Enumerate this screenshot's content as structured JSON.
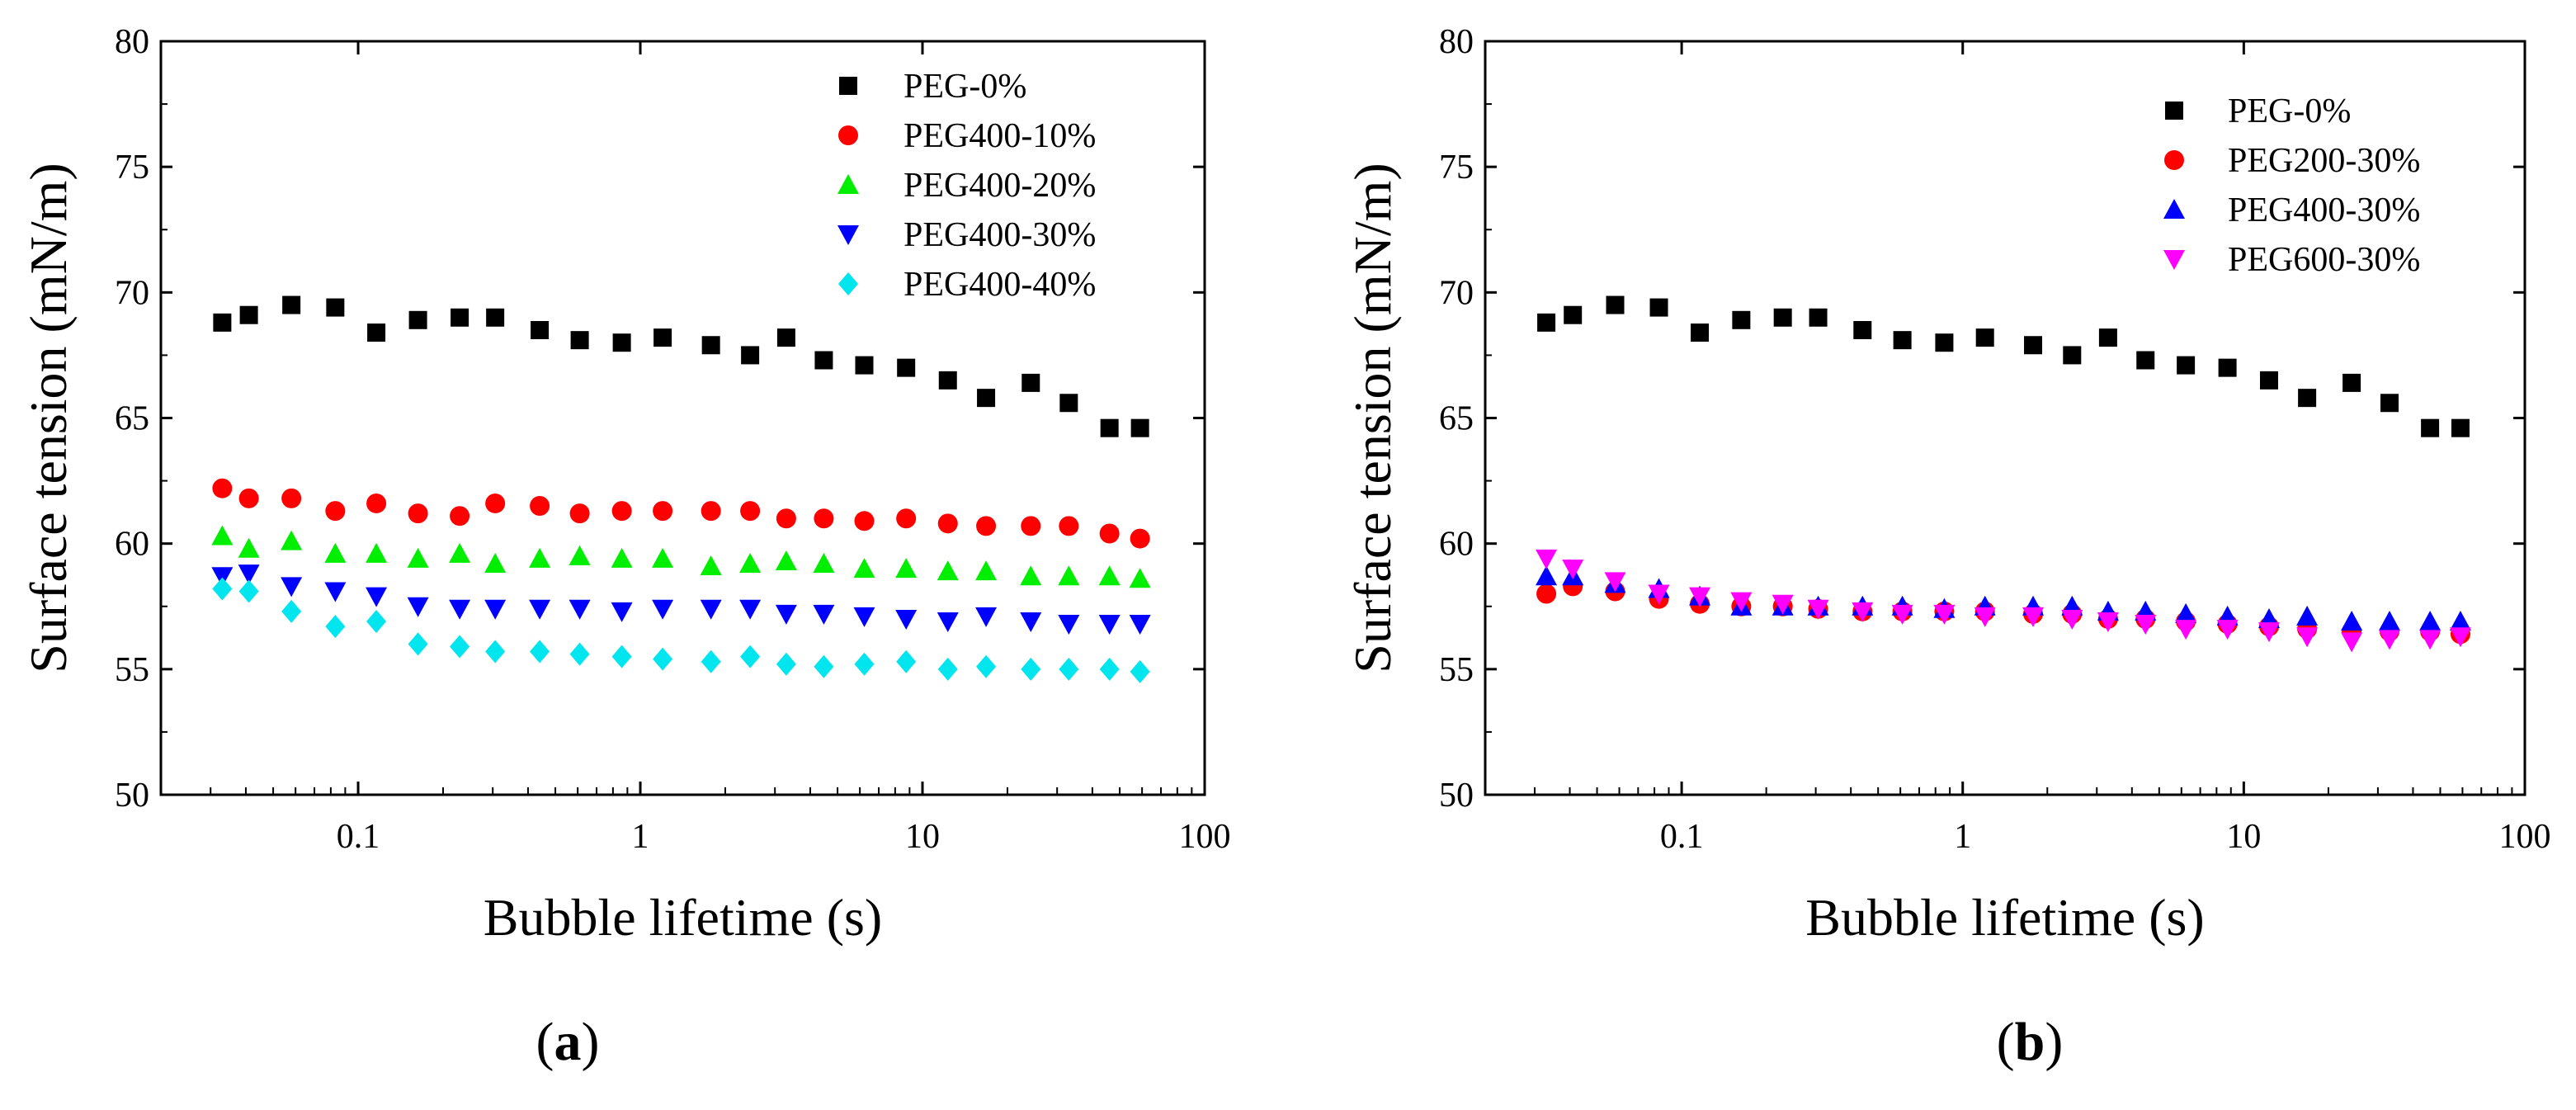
{
  "colors": {
    "PEG-0%": "#000000",
    "PEG400-10%": "#ff0000",
    "PEG400-20%": "#00ee00",
    "PEG400-30%": "#0000ff",
    "PEG400-40%": "#00e5ee",
    "PEG200-30%": "#ff0000",
    "PEG600-30%": "#ff00ff"
  },
  "panels": [
    {
      "label_open": "(",
      "label_letter": "a",
      "label_close": ")"
    },
    {
      "label_open": "(",
      "label_letter": "b",
      "label_close": ")"
    }
  ],
  "chart_data": [
    {
      "type": "scatter",
      "xscale": "log",
      "xlabel": "Bubble lifetime (s)",
      "ylabel": "Surface tension (mN/m)",
      "xlim": [
        0.02,
        100
      ],
      "ylim": [
        50,
        80
      ],
      "xticks": [
        0.1,
        1,
        10,
        100
      ],
      "xtick_labels": [
        "0.1",
        "1",
        "10",
        "100"
      ],
      "yticks": [
        50,
        55,
        60,
        65,
        70,
        75,
        80
      ],
      "ytick_labels": [
        "50",
        "55",
        "60",
        "65",
        "70",
        "75",
        "80"
      ],
      "legend_position": "top-right",
      "x": [
        0.033,
        0.041,
        0.058,
        0.083,
        0.116,
        0.163,
        0.229,
        0.306,
        0.44,
        0.61,
        0.86,
        1.2,
        1.78,
        2.45,
        3.29,
        4.47,
        6.22,
        8.75,
        12.3,
        16.8,
        24.2,
        33.0,
        46.0,
        59.0
      ],
      "series": [
        {
          "name": "PEG-0%",
          "marker": "square",
          "values": [
            68.8,
            69.1,
            69.5,
            69.4,
            68.4,
            68.9,
            69.0,
            69.0,
            68.5,
            68.1,
            68.0,
            68.2,
            67.9,
            67.5,
            68.2,
            67.3,
            67.1,
            67.0,
            66.5,
            65.8,
            66.4,
            65.6,
            64.6,
            64.6
          ]
        },
        {
          "name": "PEG400-10%",
          "marker": "circle",
          "values": [
            62.2,
            61.8,
            61.8,
            61.3,
            61.6,
            61.2,
            61.1,
            61.6,
            61.5,
            61.2,
            61.3,
            61.3,
            61.3,
            61.3,
            61.0,
            61.0,
            60.9,
            61.0,
            60.8,
            60.7,
            60.7,
            60.7,
            60.4,
            60.2
          ]
        },
        {
          "name": "PEG400-20%",
          "marker": "triangle-up",
          "values": [
            60.3,
            59.8,
            60.1,
            59.6,
            59.6,
            59.4,
            59.6,
            59.2,
            59.4,
            59.5,
            59.4,
            59.4,
            59.1,
            59.2,
            59.3,
            59.2,
            59.0,
            59.0,
            58.9,
            58.9,
            58.7,
            58.7,
            58.7,
            58.6
          ]
        },
        {
          "name": "PEG400-30%",
          "marker": "triangle-down",
          "values": [
            58.7,
            58.8,
            58.3,
            58.1,
            57.9,
            57.5,
            57.4,
            57.4,
            57.4,
            57.4,
            57.3,
            57.4,
            57.4,
            57.4,
            57.2,
            57.2,
            57.1,
            57.0,
            56.9,
            57.1,
            56.9,
            56.8,
            56.8,
            56.8
          ]
        },
        {
          "name": "PEG400-40%",
          "marker": "diamond",
          "values": [
            58.2,
            58.1,
            57.3,
            56.7,
            56.9,
            56.0,
            55.9,
            55.7,
            55.7,
            55.6,
            55.5,
            55.4,
            55.3,
            55.5,
            55.2,
            55.1,
            55.2,
            55.3,
            55.0,
            55.1,
            55.0,
            55.0,
            55.0,
            54.9
          ]
        }
      ]
    },
    {
      "type": "scatter",
      "xscale": "log",
      "xlabel": "Bubble lifetime (s)",
      "ylabel": "Surface tension (mN/m)",
      "xlim": [
        0.02,
        100
      ],
      "ylim": [
        50,
        80
      ],
      "xticks": [
        0.1,
        1,
        10,
        100
      ],
      "xtick_labels": [
        "0.1",
        "1",
        "10",
        "100"
      ],
      "yticks": [
        50,
        55,
        60,
        65,
        70,
        75,
        80
      ],
      "ytick_labels": [
        "50",
        "55",
        "60",
        "65",
        "70",
        "75",
        "80"
      ],
      "legend_position": "top-right",
      "x": [
        0.033,
        0.041,
        0.058,
        0.083,
        0.116,
        0.163,
        0.229,
        0.306,
        0.44,
        0.61,
        0.86,
        1.2,
        1.78,
        2.45,
        3.29,
        4.47,
        6.22,
        8.75,
        12.3,
        16.8,
        24.2,
        33.0,
        46.0,
        59.0
      ],
      "series": [
        {
          "name": "PEG-0%",
          "marker": "square",
          "values": [
            68.8,
            69.1,
            69.5,
            69.4,
            68.4,
            68.9,
            69.0,
            69.0,
            68.5,
            68.1,
            68.0,
            68.2,
            67.9,
            67.5,
            68.2,
            67.3,
            67.1,
            67.0,
            66.5,
            65.8,
            66.4,
            65.6,
            64.6,
            64.6
          ]
        },
        {
          "name": "PEG200-30%",
          "marker": "circle",
          "values": [
            58.0,
            58.3,
            58.1,
            57.8,
            57.6,
            57.5,
            57.5,
            57.4,
            57.3,
            57.3,
            57.3,
            57.3,
            57.2,
            57.2,
            57.0,
            57.0,
            56.9,
            56.8,
            56.7,
            56.6,
            56.5,
            56.5,
            56.5,
            56.4
          ]
        },
        {
          "name": "PEG400-30%",
          "marker": "triangle-up",
          "values": [
            58.7,
            58.7,
            58.4,
            58.2,
            57.9,
            57.5,
            57.5,
            57.5,
            57.5,
            57.5,
            57.4,
            57.5,
            57.5,
            57.5,
            57.3,
            57.3,
            57.2,
            57.1,
            57.0,
            57.1,
            56.9,
            56.9,
            56.9,
            56.9
          ]
        },
        {
          "name": "PEG600-30%",
          "marker": "triangle-down",
          "values": [
            59.4,
            59.0,
            58.5,
            58.0,
            57.9,
            57.7,
            57.6,
            57.4,
            57.3,
            57.2,
            57.2,
            57.1,
            57.1,
            57.0,
            56.9,
            56.8,
            56.6,
            56.6,
            56.5,
            56.3,
            56.1,
            56.2,
            56.2,
            56.3
          ]
        }
      ]
    }
  ]
}
